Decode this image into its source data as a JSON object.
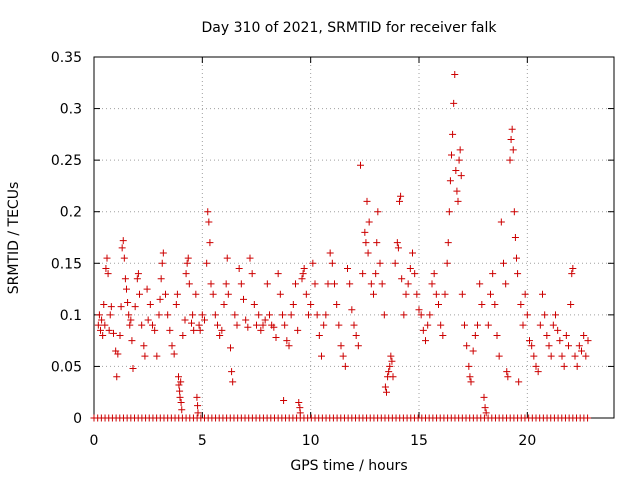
{
  "chart_data": {
    "type": "scatter",
    "title": "Day 310 of 2021, SRMTID for receiver falk",
    "xlabel": "GPS time / hours",
    "ylabel": "SRMTID / TECUs",
    "xlim": [
      0,
      24
    ],
    "ylim": [
      0,
      0.35
    ],
    "xticks": [
      0,
      5,
      10,
      15,
      20
    ],
    "xtick_labels": [
      "0",
      "5",
      "10",
      "15",
      "20"
    ],
    "yticks": [
      0,
      0.05,
      0.1,
      0.15,
      0.2,
      0.25,
      0.3,
      0.35
    ],
    "ytick_labels": [
      "0",
      "0.05",
      "0.1",
      "0.15",
      "0.2",
      "0.25",
      "0.3",
      "0.35"
    ],
    "grid": true,
    "marker": "+",
    "color": "#cc0000",
    "series": [
      {
        "name": "SRMTID",
        "points": [
          [
            0.2,
            0.09
          ],
          [
            0.25,
            0.1
          ],
          [
            0.3,
            0.085
          ],
          [
            0.35,
            0.095
          ],
          [
            0.4,
            0.08
          ],
          [
            0.45,
            0.11
          ],
          [
            0.5,
            0.09
          ],
          [
            0.55,
            0.145
          ],
          [
            0.6,
            0.155
          ],
          [
            0.65,
            0.14
          ],
          [
            0.7,
            0.085
          ],
          [
            0.75,
            0.1
          ],
          [
            0.8,
            0.108
          ],
          [
            0.9,
            0.082
          ],
          [
            1.0,
            0.065
          ],
          [
            1.05,
            0.04
          ],
          [
            1.1,
            0.062
          ],
          [
            1.2,
            0.08
          ],
          [
            1.25,
            0.108
          ],
          [
            1.3,
            0.165
          ],
          [
            1.35,
            0.172
          ],
          [
            1.4,
            0.155
          ],
          [
            1.45,
            0.135
          ],
          [
            1.5,
            0.125
          ],
          [
            1.55,
            0.112
          ],
          [
            1.6,
            0.1
          ],
          [
            1.65,
            0.09
          ],
          [
            1.7,
            0.095
          ],
          [
            1.75,
            0.075
          ],
          [
            1.8,
            0.048
          ],
          [
            1.9,
            0.108
          ],
          [
            2.0,
            0.135
          ],
          [
            2.05,
            0.14
          ],
          [
            2.1,
            0.12
          ],
          [
            2.2,
            0.09
          ],
          [
            2.3,
            0.07
          ],
          [
            2.35,
            0.06
          ],
          [
            2.45,
            0.125
          ],
          [
            2.5,
            0.095
          ],
          [
            2.6,
            0.11
          ],
          [
            2.7,
            0.09
          ],
          [
            2.8,
            0.085
          ],
          [
            2.9,
            0.06
          ],
          [
            3.0,
            0.1
          ],
          [
            3.05,
            0.115
          ],
          [
            3.1,
            0.135
          ],
          [
            3.15,
            0.15
          ],
          [
            3.2,
            0.16
          ],
          [
            3.3,
            0.12
          ],
          [
            3.4,
            0.1
          ],
          [
            3.5,
            0.085
          ],
          [
            3.6,
            0.07
          ],
          [
            3.7,
            0.062
          ],
          [
            3.8,
            0.11
          ],
          [
            3.85,
            0.12
          ],
          [
            3.9,
            0.04
          ],
          [
            3.92,
            0.032
          ],
          [
            3.95,
            0.026
          ],
          [
            3.97,
            0.02
          ],
          [
            4.0,
            0.035
          ],
          [
            4.02,
            0.015
          ],
          [
            4.05,
            0.008
          ],
          [
            4.1,
            0.08
          ],
          [
            4.2,
            0.095
          ],
          [
            4.25,
            0.14
          ],
          [
            4.3,
            0.15
          ],
          [
            4.35,
            0.155
          ],
          [
            4.4,
            0.13
          ],
          [
            4.5,
            0.092
          ],
          [
            4.55,
            0.1
          ],
          [
            4.6,
            0.085
          ],
          [
            4.7,
            0.12
          ],
          [
            4.75,
            0.02
          ],
          [
            4.78,
            0.012
          ],
          [
            4.8,
            0.005
          ],
          [
            4.85,
            0.09
          ],
          [
            4.9,
            0.085
          ],
          [
            5.0,
            0.1
          ],
          [
            5.1,
            0.095
          ],
          [
            5.2,
            0.15
          ],
          [
            5.25,
            0.2
          ],
          [
            5.3,
            0.19
          ],
          [
            5.35,
            0.17
          ],
          [
            5.4,
            0.13
          ],
          [
            5.5,
            0.12
          ],
          [
            5.6,
            0.1
          ],
          [
            5.7,
            0.09
          ],
          [
            5.8,
            0.08
          ],
          [
            5.9,
            0.085
          ],
          [
            6.0,
            0.11
          ],
          [
            6.1,
            0.13
          ],
          [
            6.15,
            0.155
          ],
          [
            6.2,
            0.12
          ],
          [
            6.3,
            0.068
          ],
          [
            6.35,
            0.045
          ],
          [
            6.4,
            0.035
          ],
          [
            6.5,
            0.1
          ],
          [
            6.6,
            0.09
          ],
          [
            6.7,
            0.145
          ],
          [
            6.8,
            0.13
          ],
          [
            6.9,
            0.115
          ],
          [
            7.0,
            0.095
          ],
          [
            7.1,
            0.088
          ],
          [
            7.2,
            0.155
          ],
          [
            7.3,
            0.14
          ],
          [
            7.4,
            0.11
          ],
          [
            7.5,
            0.09
          ],
          [
            7.6,
            0.1
          ],
          [
            7.7,
            0.085
          ],
          [
            7.8,
            0.09
          ],
          [
            7.9,
            0.095
          ],
          [
            8.0,
            0.13
          ],
          [
            8.1,
            0.1
          ],
          [
            8.2,
            0.09
          ],
          [
            8.3,
            0.088
          ],
          [
            8.4,
            0.078
          ],
          [
            8.5,
            0.14
          ],
          [
            8.6,
            0.12
          ],
          [
            8.7,
            0.1
          ],
          [
            8.75,
            0.017
          ],
          [
            8.8,
            0.09
          ],
          [
            8.9,
            0.075
          ],
          [
            9.0,
            0.07
          ],
          [
            9.1,
            0.1
          ],
          [
            9.2,
            0.11
          ],
          [
            9.3,
            0.13
          ],
          [
            9.4,
            0.085
          ],
          [
            9.45,
            0.015
          ],
          [
            9.5,
            0.01
          ],
          [
            9.52,
            0.005
          ],
          [
            9.6,
            0.135
          ],
          [
            9.65,
            0.14
          ],
          [
            9.7,
            0.145
          ],
          [
            9.8,
            0.12
          ],
          [
            9.9,
            0.1
          ],
          [
            10.0,
            0.11
          ],
          [
            10.1,
            0.15
          ],
          [
            10.2,
            0.13
          ],
          [
            10.3,
            0.1
          ],
          [
            10.4,
            0.08
          ],
          [
            10.5,
            0.06
          ],
          [
            10.6,
            0.09
          ],
          [
            10.7,
            0.1
          ],
          [
            10.8,
            0.13
          ],
          [
            10.9,
            0.16
          ],
          [
            11.0,
            0.15
          ],
          [
            11.1,
            0.13
          ],
          [
            11.2,
            0.11
          ],
          [
            11.3,
            0.09
          ],
          [
            11.4,
            0.07
          ],
          [
            11.5,
            0.06
          ],
          [
            11.6,
            0.05
          ],
          [
            11.7,
            0.145
          ],
          [
            11.8,
            0.13
          ],
          [
            11.9,
            0.105
          ],
          [
            12.0,
            0.09
          ],
          [
            12.1,
            0.08
          ],
          [
            12.2,
            0.07
          ],
          [
            12.3,
            0.245
          ],
          [
            12.4,
            0.14
          ],
          [
            12.5,
            0.18
          ],
          [
            12.55,
            0.17
          ],
          [
            12.6,
            0.21
          ],
          [
            12.65,
            0.16
          ],
          [
            12.7,
            0.19
          ],
          [
            12.8,
            0.13
          ],
          [
            12.9,
            0.12
          ],
          [
            13.0,
            0.14
          ],
          [
            13.05,
            0.17
          ],
          [
            13.1,
            0.2
          ],
          [
            13.2,
            0.15
          ],
          [
            13.3,
            0.13
          ],
          [
            13.4,
            0.1
          ],
          [
            13.45,
            0.03
          ],
          [
            13.5,
            0.025
          ],
          [
            13.55,
            0.04
          ],
          [
            13.6,
            0.045
          ],
          [
            13.65,
            0.05
          ],
          [
            13.7,
            0.06
          ],
          [
            13.75,
            0.055
          ],
          [
            13.8,
            0.04
          ],
          [
            13.9,
            0.15
          ],
          [
            14.0,
            0.17
          ],
          [
            14.05,
            0.165
          ],
          [
            14.1,
            0.21
          ],
          [
            14.15,
            0.215
          ],
          [
            14.2,
            0.135
          ],
          [
            14.3,
            0.1
          ],
          [
            14.4,
            0.12
          ],
          [
            14.5,
            0.13
          ],
          [
            14.6,
            0.145
          ],
          [
            14.7,
            0.16
          ],
          [
            14.8,
            0.14
          ],
          [
            14.9,
            0.12
          ],
          [
            15.0,
            0.105
          ],
          [
            15.1,
            0.1
          ],
          [
            15.2,
            0.085
          ],
          [
            15.3,
            0.075
          ],
          [
            15.4,
            0.09
          ],
          [
            15.5,
            0.1
          ],
          [
            15.6,
            0.13
          ],
          [
            15.7,
            0.14
          ],
          [
            15.8,
            0.12
          ],
          [
            15.9,
            0.11
          ],
          [
            16.0,
            0.09
          ],
          [
            16.1,
            0.08
          ],
          [
            16.2,
            0.12
          ],
          [
            16.3,
            0.15
          ],
          [
            16.35,
            0.17
          ],
          [
            16.4,
            0.2
          ],
          [
            16.45,
            0.23
          ],
          [
            16.5,
            0.255
          ],
          [
            16.55,
            0.275
          ],
          [
            16.6,
            0.305
          ],
          [
            16.65,
            0.333
          ],
          [
            16.7,
            0.24
          ],
          [
            16.75,
            0.22
          ],
          [
            16.8,
            0.21
          ],
          [
            16.85,
            0.25
          ],
          [
            16.9,
            0.26
          ],
          [
            16.95,
            0.235
          ],
          [
            17.0,
            0.12
          ],
          [
            17.1,
            0.09
          ],
          [
            17.2,
            0.07
          ],
          [
            17.3,
            0.05
          ],
          [
            17.35,
            0.04
          ],
          [
            17.4,
            0.035
          ],
          [
            17.5,
            0.065
          ],
          [
            17.6,
            0.08
          ],
          [
            17.7,
            0.09
          ],
          [
            17.8,
            0.13
          ],
          [
            17.9,
            0.11
          ],
          [
            18.0,
            0.02
          ],
          [
            18.05,
            0.01
          ],
          [
            18.1,
            0.005
          ],
          [
            18.2,
            0.09
          ],
          [
            18.3,
            0.12
          ],
          [
            18.4,
            0.14
          ],
          [
            18.5,
            0.11
          ],
          [
            18.6,
            0.08
          ],
          [
            18.7,
            0.06
          ],
          [
            18.8,
            0.19
          ],
          [
            18.9,
            0.15
          ],
          [
            19.0,
            0.13
          ],
          [
            19.05,
            0.045
          ],
          [
            19.1,
            0.04
          ],
          [
            19.2,
            0.25
          ],
          [
            19.25,
            0.27
          ],
          [
            19.3,
            0.28
          ],
          [
            19.35,
            0.26
          ],
          [
            19.4,
            0.2
          ],
          [
            19.45,
            0.175
          ],
          [
            19.5,
            0.155
          ],
          [
            19.55,
            0.14
          ],
          [
            19.6,
            0.035
          ],
          [
            19.7,
            0.11
          ],
          [
            19.8,
            0.09
          ],
          [
            19.9,
            0.12
          ],
          [
            20.0,
            0.1
          ],
          [
            20.1,
            0.075
          ],
          [
            20.2,
            0.07
          ],
          [
            20.3,
            0.06
          ],
          [
            20.4,
            0.05
          ],
          [
            20.5,
            0.045
          ],
          [
            20.6,
            0.09
          ],
          [
            20.7,
            0.12
          ],
          [
            20.8,
            0.1
          ],
          [
            20.9,
            0.08
          ],
          [
            21.0,
            0.07
          ],
          [
            21.1,
            0.06
          ],
          [
            21.2,
            0.09
          ],
          [
            21.3,
            0.1
          ],
          [
            21.4,
            0.085
          ],
          [
            21.5,
            0.075
          ],
          [
            21.6,
            0.06
          ],
          [
            21.7,
            0.05
          ],
          [
            21.8,
            0.08
          ],
          [
            21.9,
            0.07
          ],
          [
            22.0,
            0.11
          ],
          [
            22.05,
            0.14
          ],
          [
            22.1,
            0.145
          ],
          [
            22.2,
            0.06
          ],
          [
            22.3,
            0.05
          ],
          [
            22.4,
            0.07
          ],
          [
            22.5,
            0.065
          ],
          [
            22.6,
            0.08
          ],
          [
            22.7,
            0.06
          ],
          [
            22.8,
            0.075
          ]
        ]
      }
    ],
    "baseline": {
      "value": 0,
      "x_start": 0,
      "x_end": 22.9,
      "step": 0.17
    }
  }
}
